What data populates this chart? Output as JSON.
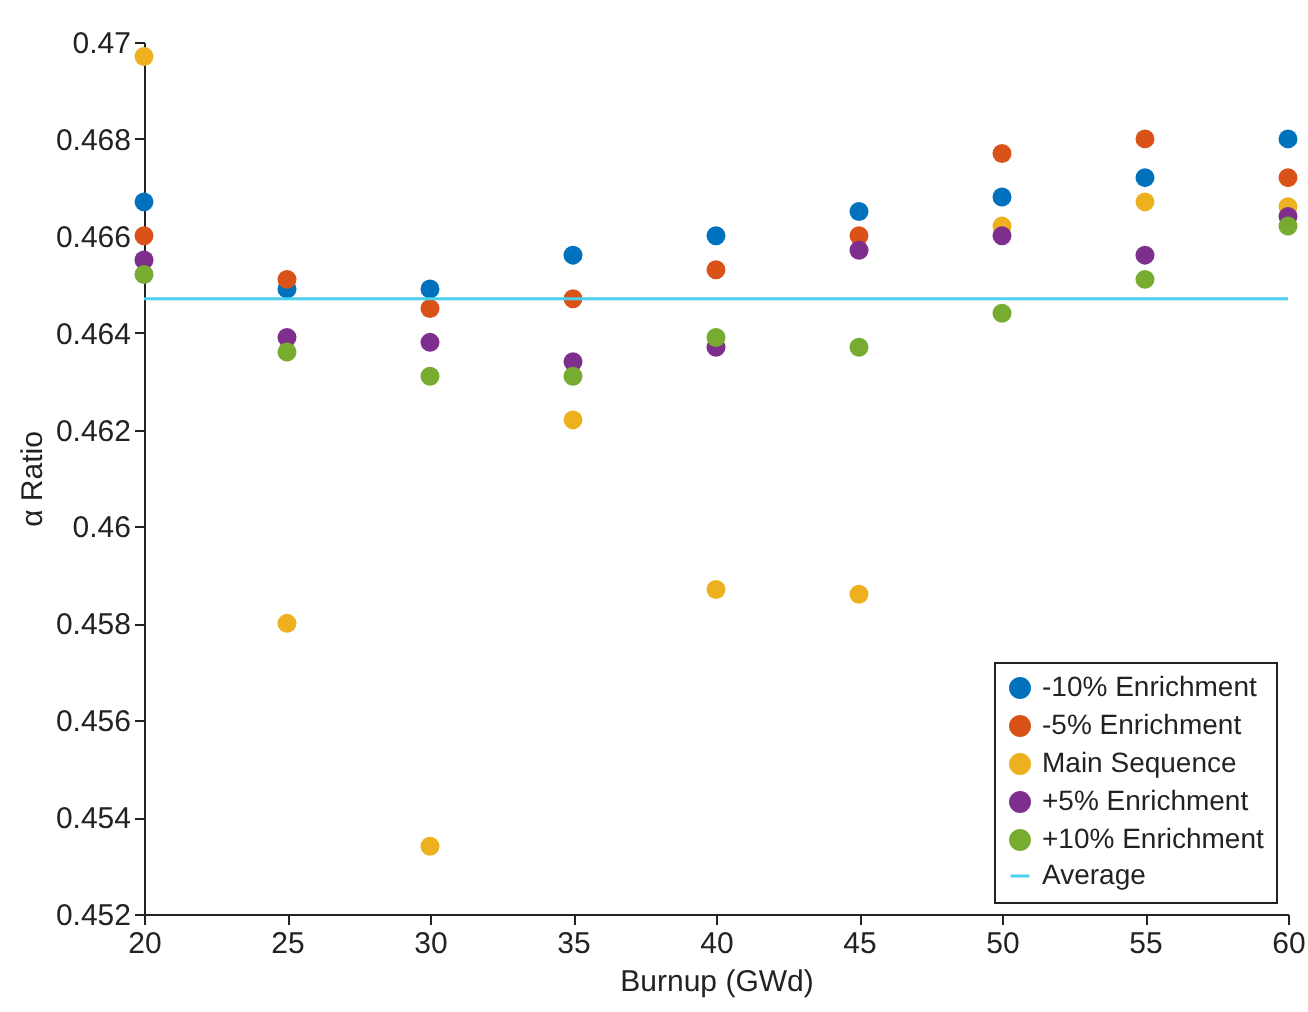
{
  "chart_data": {
    "type": "scatter",
    "xlabel": "Burnup (GWd)",
    "ylabel": "α Ratio",
    "x": [
      20,
      25,
      30,
      35,
      40,
      45,
      50,
      55,
      60
    ],
    "series": [
      {
        "name": "-10% Enrichment",
        "color": "#0072bd",
        "values": [
          0.4667,
          0.4649,
          0.4649,
          0.4656,
          0.466,
          0.4665,
          0.4668,
          0.4672,
          0.468
        ]
      },
      {
        "name": "-5% Enrichment",
        "color": "#d95319",
        "values": [
          0.466,
          0.4651,
          0.4645,
          0.4647,
          0.4653,
          0.466,
          0.4677,
          0.468,
          0.4672
        ]
      },
      {
        "name": "Main Sequence",
        "color": "#edb120",
        "values": [
          0.4697,
          0.458,
          0.4534,
          0.4622,
          0.4587,
          0.4586,
          0.4662,
          0.4667,
          0.4666
        ]
      },
      {
        "name": "+5% Enrichment",
        "color": "#7e2f8e",
        "values": [
          0.4655,
          0.4639,
          0.4638,
          0.4634,
          0.4637,
          0.4657,
          0.466,
          0.4656,
          0.4664
        ]
      },
      {
        "name": "+10% Enrichment",
        "color": "#77ac30",
        "values": [
          0.4652,
          0.4636,
          0.4631,
          0.4631,
          0.4639,
          0.4637,
          0.4644,
          0.4651,
          0.4662
        ]
      }
    ],
    "ref_lines": [
      {
        "axis": "y",
        "value": 0.4647,
        "label": "Average",
        "color": "#4dd0ee"
      }
    ],
    "xlim": [
      20,
      60
    ],
    "xticks": [
      20,
      25,
      30,
      35,
      40,
      45,
      50,
      55,
      60
    ],
    "ylim": [
      0.452,
      0.47
    ],
    "yticks": [
      0.452,
      0.454,
      0.456,
      0.458,
      0.46,
      0.462,
      0.464,
      0.466,
      0.468,
      0.47
    ],
    "grid": false,
    "legend": "bottom right",
    "marker": "circle"
  }
}
